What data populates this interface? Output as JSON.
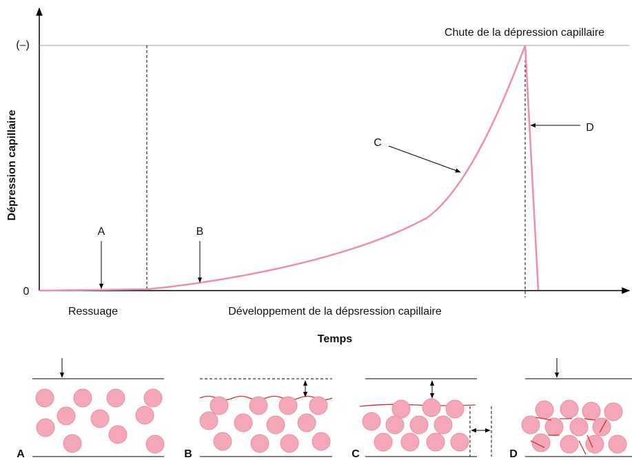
{
  "axes": {
    "y_label": "Dépression capillaire",
    "y_ticks": [
      "(–)",
      "0"
    ],
    "x_label": "Temps"
  },
  "phases": [
    "Ressuage",
    "Développement de la dépsression capillaire"
  ],
  "peak_label": "Chute de la dépression capillaire",
  "points": [
    "A",
    "B",
    "C",
    "D"
  ],
  "panels": [
    "A",
    "B",
    "C",
    "D"
  ]
}
